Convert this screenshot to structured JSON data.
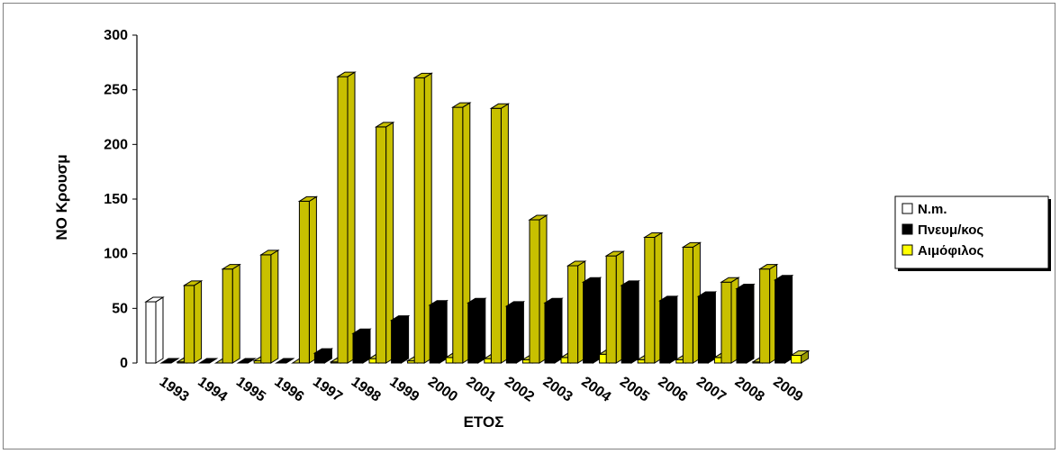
{
  "chart_data": {
    "type": "bar",
    "title": "",
    "xlabel": "ΕΤΟΣ",
    "ylabel": "ΝΟ Κρουσμ",
    "ylim": [
      0,
      300
    ],
    "yticks": [
      0,
      50,
      100,
      150,
      200,
      250,
      300
    ],
    "categories": [
      "1993",
      "1994",
      "1995",
      "1996",
      "1997",
      "1998",
      "1999",
      "2000",
      "2001",
      "2002",
      "2003",
      "2004",
      "2005",
      "2006",
      "2007",
      "2008",
      "2009"
    ],
    "series": [
      {
        "name": "N.m.",
        "color": "#ffffff",
        "top_color": "#ffffff",
        "side_color": "#ffffff",
        "values": [
          56,
          71,
          86,
          99,
          148,
          262,
          216,
          261,
          234,
          233,
          131,
          89,
          98,
          115,
          106,
          74,
          86
        ]
      },
      {
        "name": "Πνευμ/κος",
        "color": "#000000",
        "top_color": "#000000",
        "side_color": "#000000",
        "values": [
          0,
          0,
          0,
          0,
          9,
          27,
          39,
          53,
          55,
          52,
          55,
          74,
          71,
          57,
          61,
          68,
          76
        ]
      },
      {
        "name": "Αιμόφιλος",
        "color": "#ffff00",
        "top_color": "#cccc33",
        "side_color": "#999900",
        "values": [
          1,
          0,
          2,
          0,
          1,
          4,
          2,
          5,
          4,
          3,
          5,
          8,
          3,
          3,
          5,
          1,
          7
        ]
      }
    ],
    "first_series_fill_from_1994": "#c8c000",
    "legend_position": "right",
    "grid": false
  }
}
